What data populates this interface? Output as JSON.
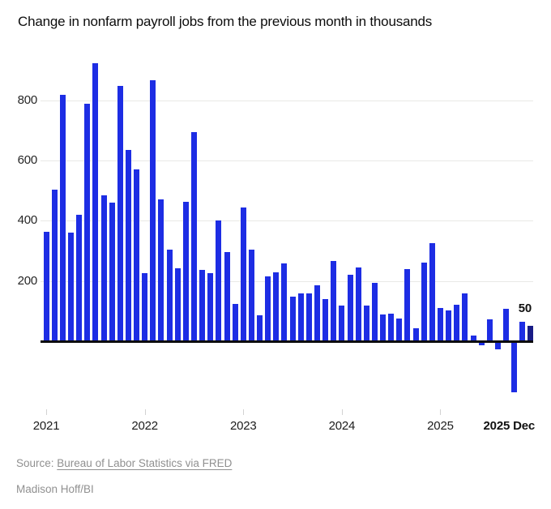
{
  "chart_data": {
    "type": "bar",
    "title": "Change in nonfarm payroll jobs from the previous month in thousands",
    "x_unit": "month",
    "series": [
      {
        "year": "2021",
        "values": [
          363,
          504,
          818,
          362,
          420,
          788,
          923,
          484,
          461,
          849,
          634,
          571
        ]
      },
      {
        "year": "2022",
        "values": [
          225,
          867,
          470,
          304,
          241,
          462,
          695,
          236,
          225,
          400,
          295,
          125
        ]
      },
      {
        "year": "2023",
        "values": [
          445,
          305,
          85,
          216,
          228,
          258,
          148,
          158,
          158,
          186,
          140,
          267
        ]
      },
      {
        "year": "2024",
        "values": [
          119,
          222,
          246,
          118,
          193,
          90,
          91,
          75,
          240,
          44,
          262,
          325
        ]
      },
      {
        "year": "2025",
        "values": [
          111,
          102,
          120,
          158,
          19,
          -14,
          72,
          -26,
          108,
          -170,
          64,
          50
        ]
      }
    ],
    "x_tick_labels": [
      "2021",
      "2022",
      "2023",
      "2024",
      "2025"
    ],
    "last_x_label": "2025 Dec",
    "annotation": {
      "text": "50",
      "month": "Dec 2025"
    },
    "y_gridlines": [
      200,
      400,
      600,
      800
    ],
    "ylim": [
      -233,
      943
    ],
    "grid_on": true,
    "bar_color": "#1d2de4",
    "highlight_color": "#181b86",
    "highlight_month": "Dec 2025",
    "zero_axis_color": "#0b0b0b"
  },
  "source": {
    "prefix": "Source:",
    "link_text": "Bureau of Labor Statistics via FRED",
    "byline": "Madison Hoff/BI"
  }
}
